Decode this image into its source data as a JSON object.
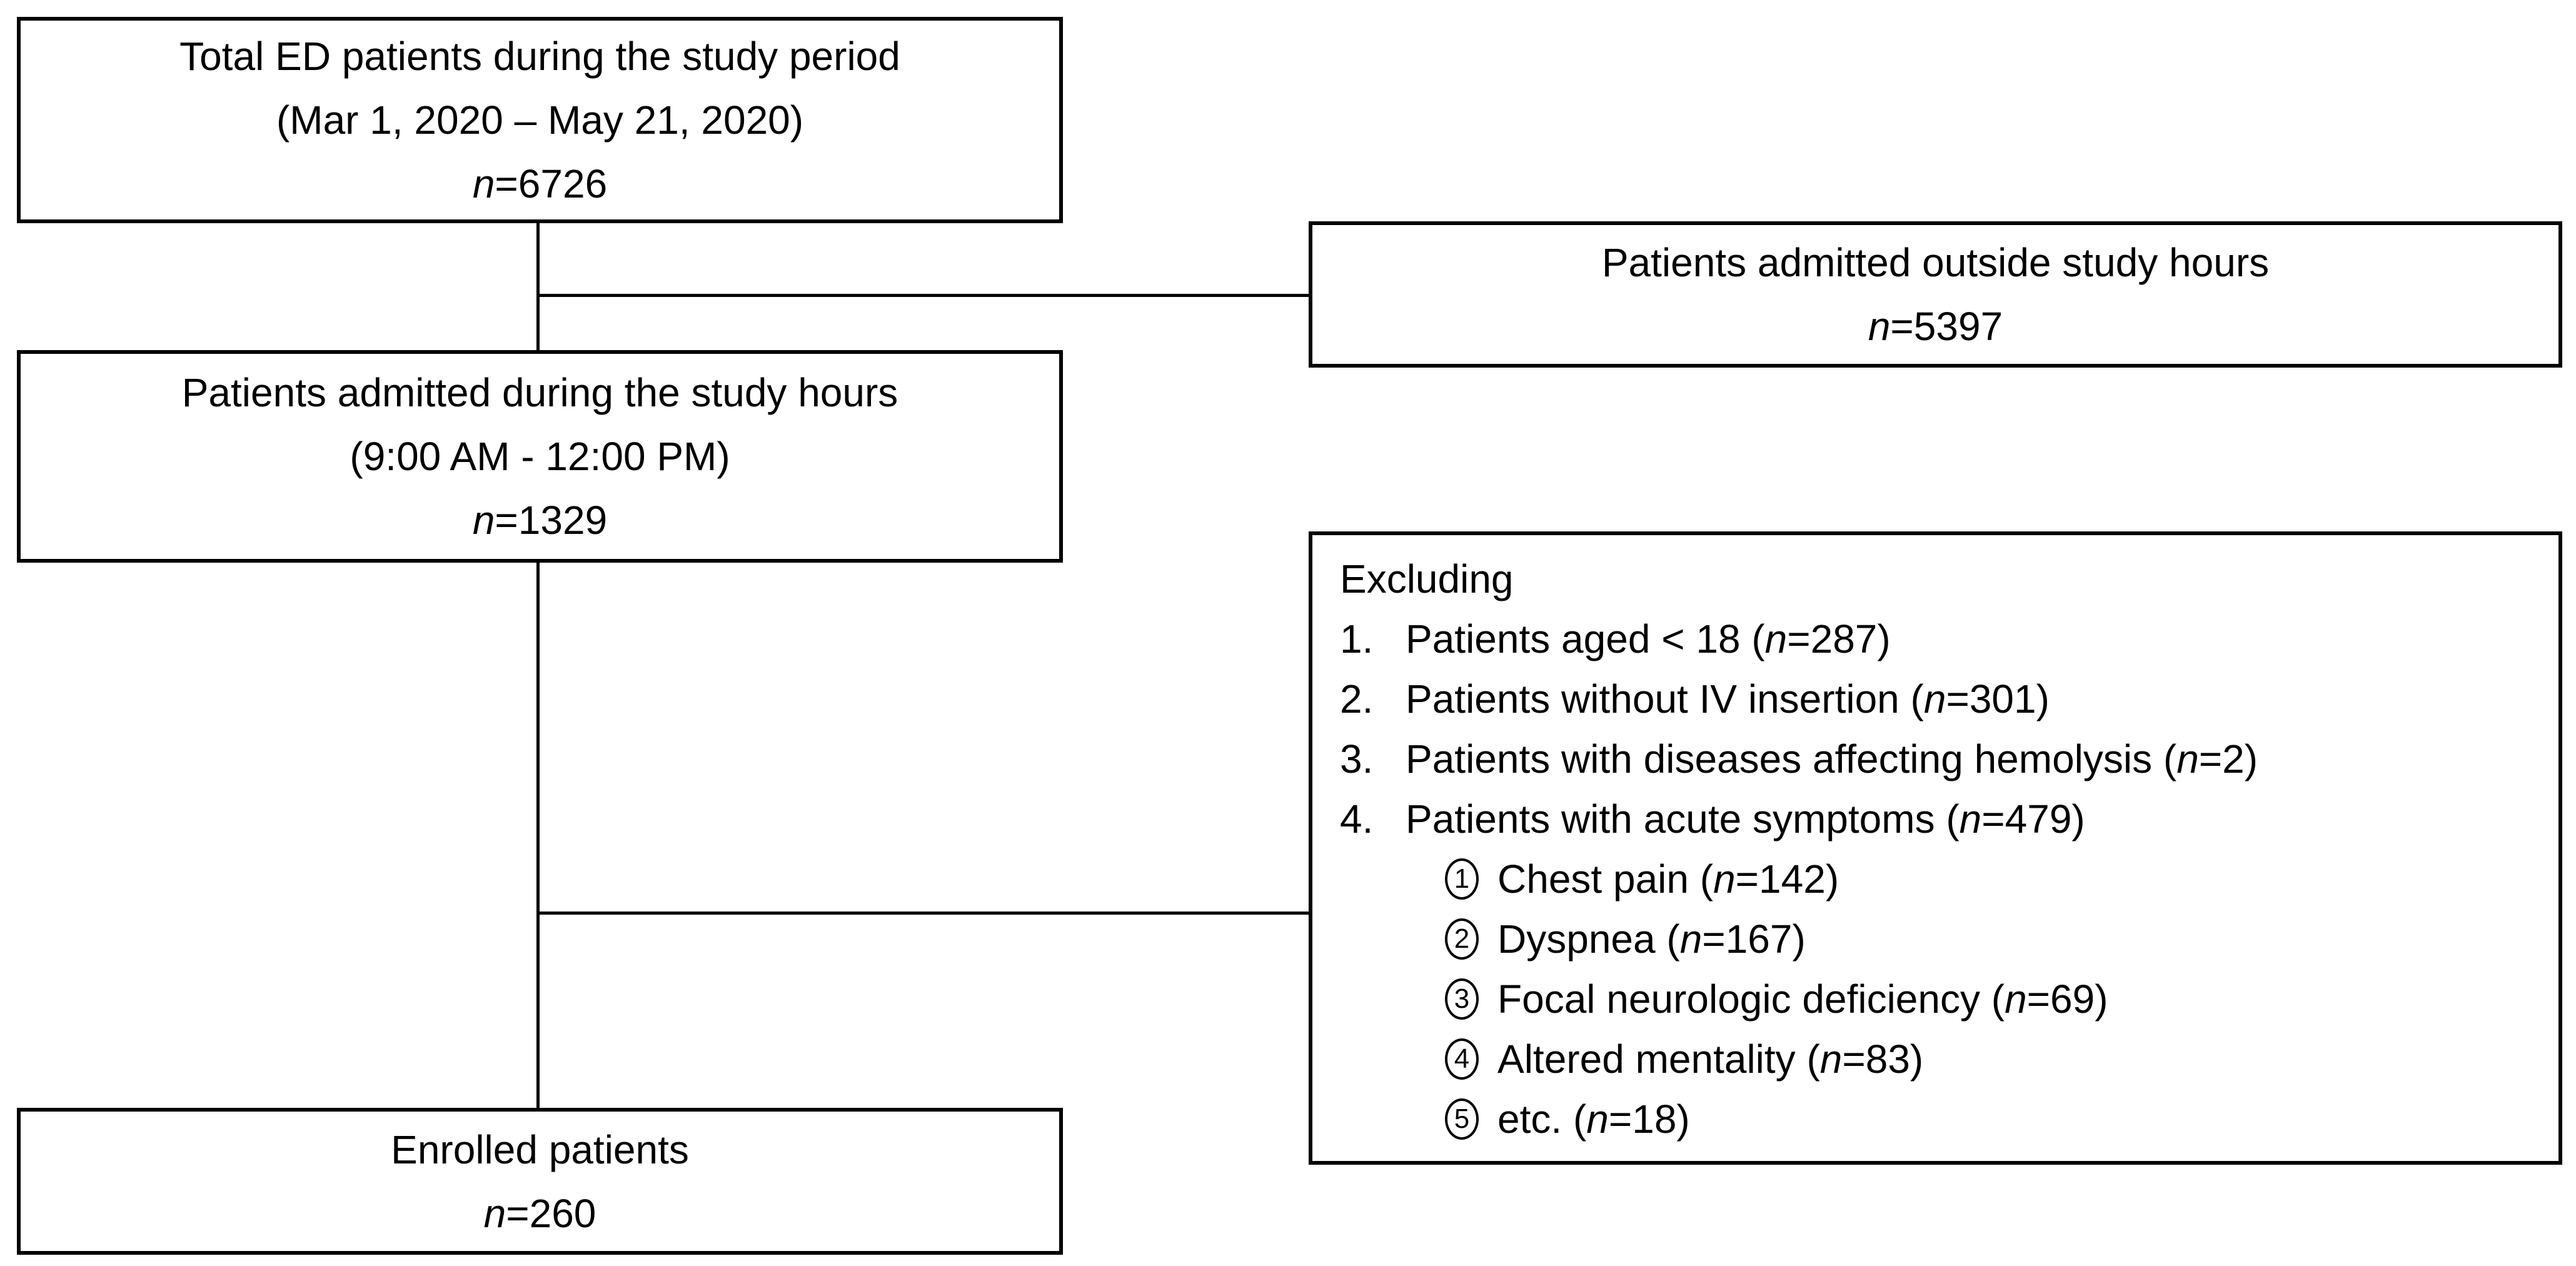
{
  "diagram": {
    "description": "Patient enrollment flow diagram",
    "colors": {
      "line": "#000000",
      "background": "#ffffff"
    },
    "boxes": {
      "total": {
        "line1": "Total ED patients during the study period",
        "line2": "(Mar 1, 2020 – May 21, 2020)",
        "n_label": "n",
        "n_value": "=6726"
      },
      "outside": {
        "line1": "Patients admitted outside study hours",
        "n_label": "n",
        "n_value": "=5397"
      },
      "during": {
        "line1": "Patients admitted during the study hours",
        "line2": "(9:00 AM - 12:00 PM)",
        "n_label": "n",
        "n_value": "=1329"
      },
      "excluding": {
        "title": "Excluding",
        "items": [
          {
            "num": "1.",
            "pre": "Patients aged < 18 (",
            "n": "n",
            "post": "=287)"
          },
          {
            "num": "2.",
            "pre": "Patients without IV insertion (",
            "n": "n",
            "post": "=301)"
          },
          {
            "num": "3.",
            "pre": "Patients with diseases affecting hemolysis (",
            "n": "n",
            "post": "=2)"
          },
          {
            "num": "4.",
            "pre": "Patients with acute symptoms (",
            "n": "n",
            "post": "=479)"
          }
        ],
        "subitems": [
          {
            "num": "1",
            "pre": "Chest pain (",
            "n": "n",
            "post": "=142)"
          },
          {
            "num": "2",
            "pre": "Dyspnea (",
            "n": "n",
            "post": "=167)"
          },
          {
            "num": "3",
            "pre": "Focal neurologic deficiency (",
            "n": "n",
            "post": "=69)"
          },
          {
            "num": "4",
            "pre": "Altered mentality (",
            "n": "n",
            "post": "=83)"
          },
          {
            "num": "5",
            "pre": "etc. (",
            "n": "n",
            "post": "=18)"
          }
        ]
      },
      "enrolled": {
        "line1": "Enrolled patients",
        "n_label": "n",
        "n_value": "=260"
      }
    }
  }
}
